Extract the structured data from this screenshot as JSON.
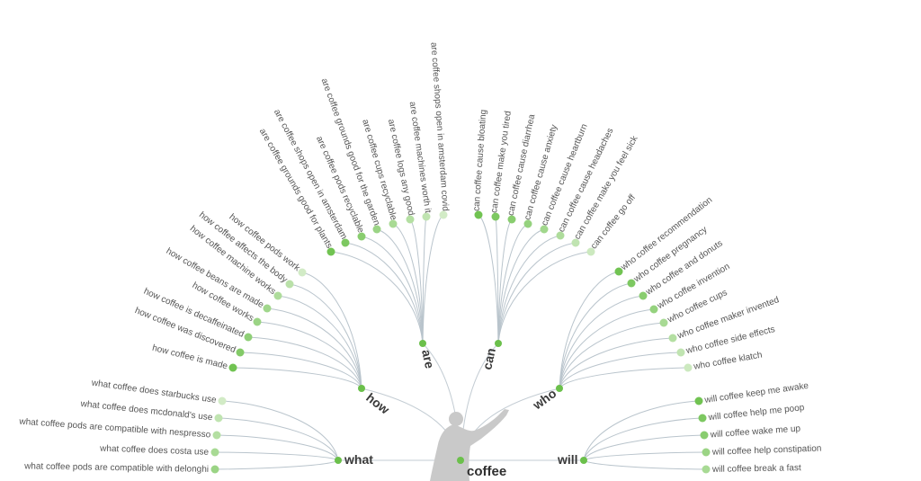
{
  "root": {
    "label": "coffee",
    "node_color": "#6bc04b"
  },
  "colors": {
    "link": "#b9c4cc",
    "branch_node": "#6bc04b",
    "leaf_strong": "#6bc04b",
    "leaf_weak": "#e4f3dc",
    "silhouette": "#c9c9c9"
  },
  "branches": [
    {
      "id": "how",
      "label": "how",
      "leaves": [
        {
          "label": "how coffee pods work",
          "strength": 0.15
        },
        {
          "label": "how coffee affects the body",
          "strength": 0.35
        },
        {
          "label": "how coffee machine works",
          "strength": 0.45
        },
        {
          "label": "how coffee beans are made",
          "strength": 0.55
        },
        {
          "label": "how coffee works",
          "strength": 0.6
        },
        {
          "label": "how coffee is decaffeinated",
          "strength": 0.7
        },
        {
          "label": "how coffee was discovered",
          "strength": 0.8
        },
        {
          "label": "how coffee is made",
          "strength": 0.95
        }
      ]
    },
    {
      "id": "are",
      "label": "are",
      "leaves": [
        {
          "label": "are coffee grounds good for plants",
          "strength": 0.95
        },
        {
          "label": "are coffee shops open in amsterdam",
          "strength": 0.85
        },
        {
          "label": "are coffee pods recyclable",
          "strength": 0.75
        },
        {
          "label": "are coffee grounds good for the garden",
          "strength": 0.6
        },
        {
          "label": "are coffee cups recyclable",
          "strength": 0.5
        },
        {
          "label": "are coffee logs any good",
          "strength": 0.4
        },
        {
          "label": "are coffee machines worth it",
          "strength": 0.3
        },
        {
          "label": "are coffee shops open in amsterdam covid",
          "strength": 0.15
        }
      ]
    },
    {
      "id": "can",
      "label": "can",
      "leaves": [
        {
          "label": "can coffee cause bloating",
          "strength": 0.95
        },
        {
          "label": "can coffee make you tired",
          "strength": 0.85
        },
        {
          "label": "can coffee cause diarrhea",
          "strength": 0.75
        },
        {
          "label": "can coffee cause anxiety",
          "strength": 0.65
        },
        {
          "label": "can coffee cause heartburn",
          "strength": 0.55
        },
        {
          "label": "can coffee cause headaches",
          "strength": 0.45
        },
        {
          "label": "can coffee make you feel sick",
          "strength": 0.3
        },
        {
          "label": "can coffee go off",
          "strength": 0.2
        }
      ]
    },
    {
      "id": "who",
      "label": "who",
      "leaves": [
        {
          "label": "who coffee recommendation",
          "strength": 0.95
        },
        {
          "label": "who coffee pregnancy",
          "strength": 0.85
        },
        {
          "label": "who coffee and donuts",
          "strength": 0.75
        },
        {
          "label": "who coffee invention",
          "strength": 0.65
        },
        {
          "label": "who coffee cups",
          "strength": 0.5
        },
        {
          "label": "who coffee maker invented",
          "strength": 0.4
        },
        {
          "label": "who coffee side effects",
          "strength": 0.3
        },
        {
          "label": "who coffee klatch",
          "strength": 0.2
        }
      ]
    },
    {
      "id": "will",
      "label": "will",
      "leaves": [
        {
          "label": "will coffee keep me awake",
          "strength": 0.95
        },
        {
          "label": "will coffee help me poop",
          "strength": 0.85
        },
        {
          "label": "will coffee wake me up",
          "strength": 0.75
        },
        {
          "label": "will coffee help constipation",
          "strength": 0.6
        },
        {
          "label": "will coffee break a fast",
          "strength": 0.5
        }
      ]
    },
    {
      "id": "what",
      "label": "what",
      "leaves": [
        {
          "label": "what coffee does starbucks use",
          "strength": 0.15
        },
        {
          "label": "what coffee does mcdonald's use",
          "strength": 0.3
        },
        {
          "label": "what coffee pods are compatible with nespresso",
          "strength": 0.4
        },
        {
          "label": "what coffee does costa use",
          "strength": 0.5
        },
        {
          "label": "what coffee pods are compatible with delonghi",
          "strength": 0.6
        }
      ]
    }
  ]
}
